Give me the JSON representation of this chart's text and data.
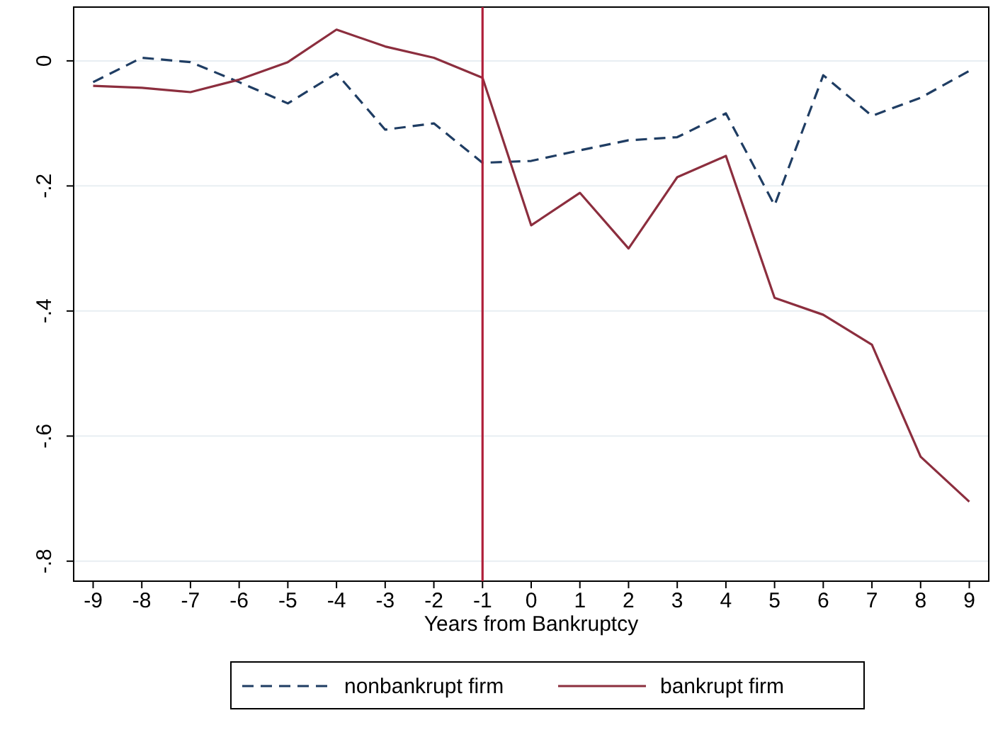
{
  "chart_data": {
    "type": "line",
    "xlabel": "Years from Bankruptcy",
    "x": [
      -9,
      -8,
      -7,
      -6,
      -5,
      -4,
      -3,
      -2,
      -1,
      0,
      1,
      2,
      3,
      4,
      5,
      6,
      7,
      8,
      9
    ],
    "xlim": [
      -9.4,
      9.4
    ],
    "xticks": [
      -9,
      -8,
      -7,
      -6,
      -5,
      -4,
      -3,
      -2,
      -1,
      0,
      1,
      2,
      3,
      4,
      5,
      6,
      7,
      8,
      9
    ],
    "ylim": [
      -0.832,
      0.086
    ],
    "yticks": [
      0,
      {
        "value": -0.2,
        "label": "-.2"
      },
      {
        "value": -0.4,
        "label": "-.4"
      },
      {
        "value": -0.6,
        "label": "-.6"
      },
      {
        "value": -0.8,
        "label": "-.8"
      }
    ],
    "grid": "y",
    "legend": "bottom",
    "marker": "none",
    "ref_lines": [
      {
        "axis": "x",
        "value": -1,
        "color": "#b0203a"
      }
    ],
    "series": [
      {
        "name": "nonbankrupt firm",
        "color": "#1f3d63",
        "line_style": "dashed",
        "values": [
          -0.034,
          0.005,
          -0.002,
          -0.034,
          -0.068,
          -0.02,
          -0.11,
          -0.1,
          -0.163,
          -0.16,
          -0.143,
          -0.127,
          -0.122,
          -0.084,
          -0.231,
          -0.023,
          -0.088,
          -0.059,
          -0.016
        ]
      },
      {
        "name": "bankrupt firm",
        "color": "#8c2e3e",
        "line_style": "solid",
        "values": [
          -0.04,
          -0.043,
          -0.05,
          -0.03,
          -0.002,
          0.05,
          0.023,
          0.005,
          -0.027,
          -0.263,
          -0.211,
          -0.3,
          -0.186,
          -0.152,
          -0.379,
          -0.406,
          -0.454,
          -0.633,
          -0.705
        ]
      }
    ]
  }
}
